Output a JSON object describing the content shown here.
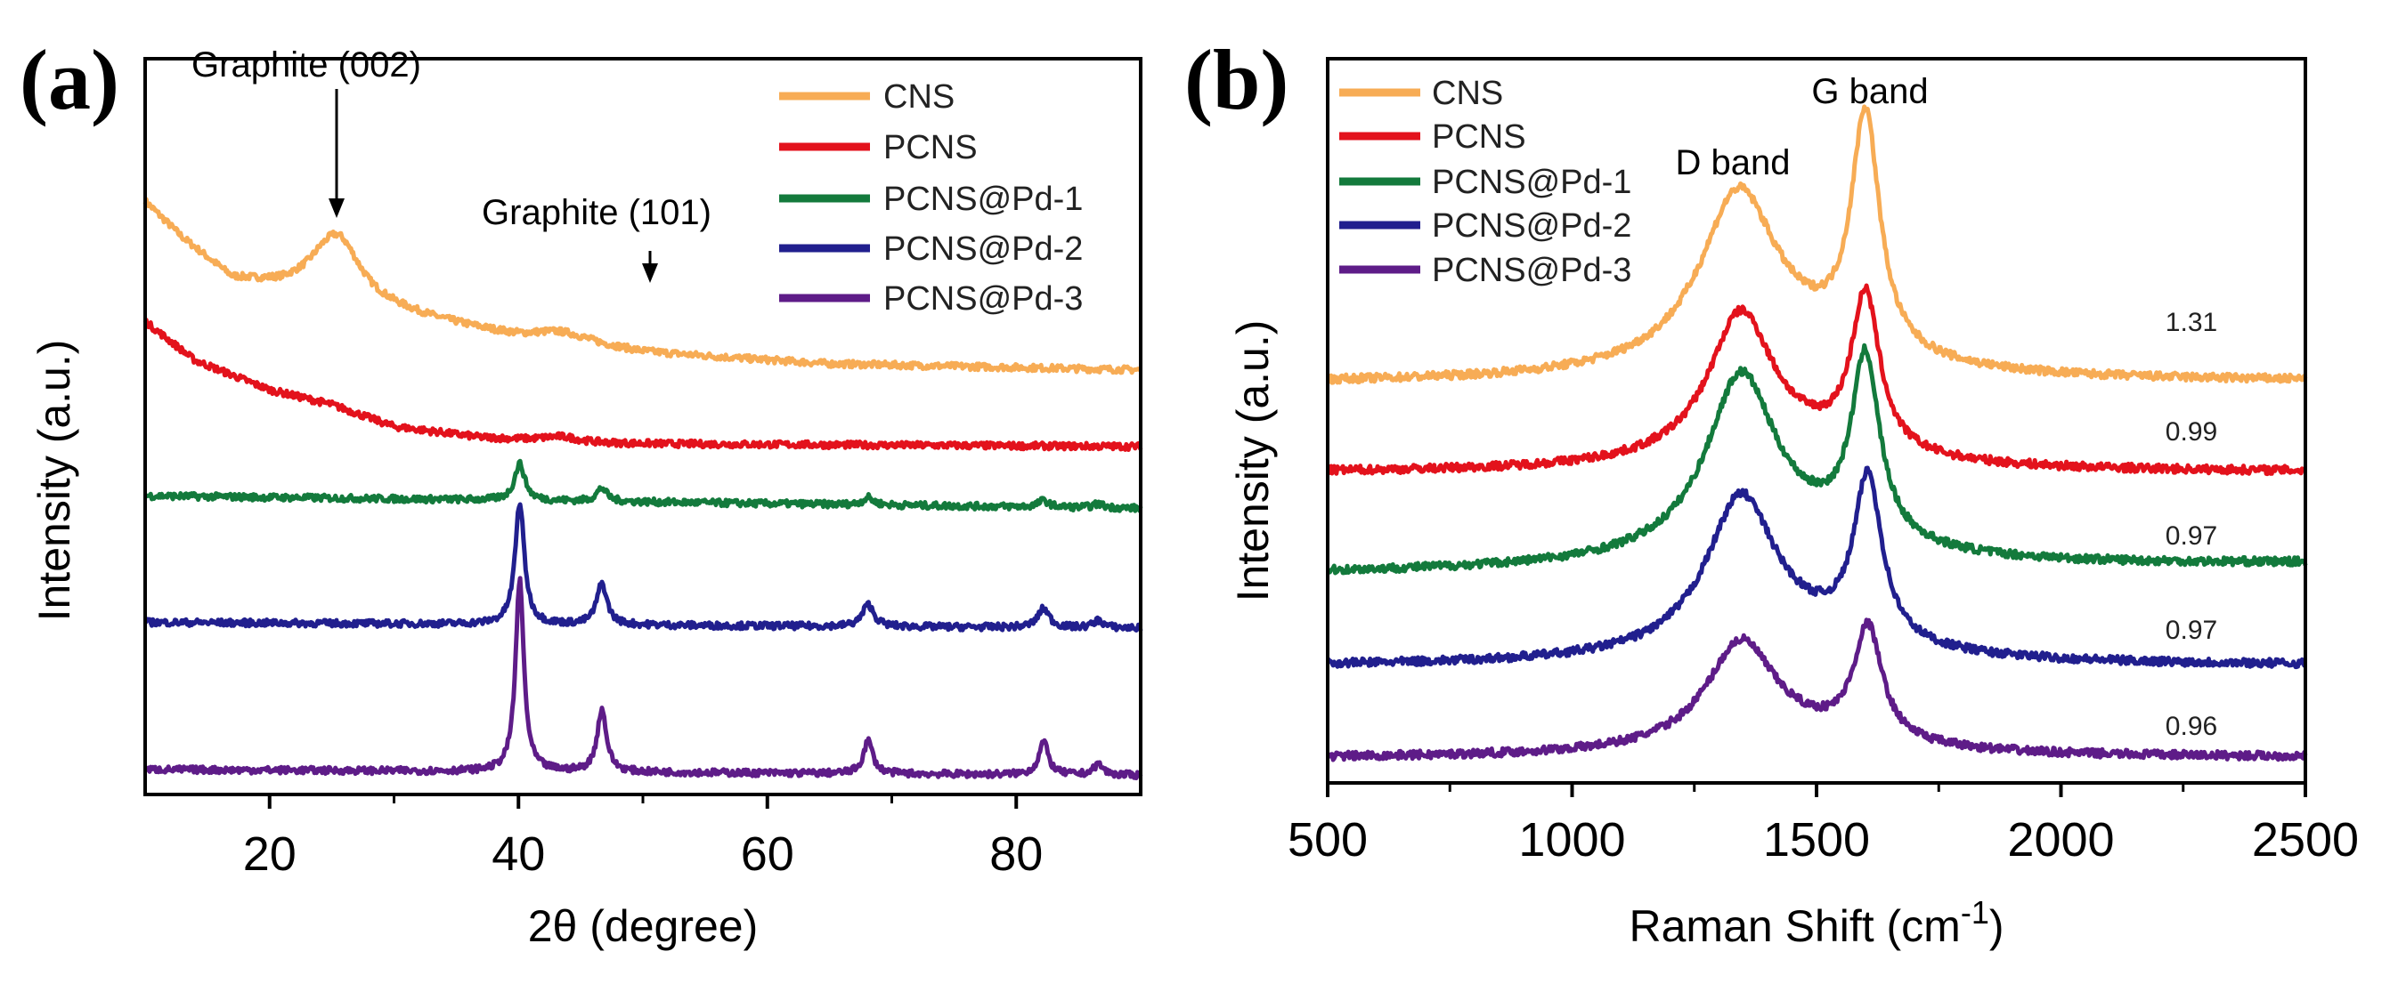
{
  "chart_data": [
    {
      "type": "line",
      "panel_label": "(a)",
      "xlabel": "2θ (degree)",
      "ylabel": "Intensity (a.u.)",
      "xlim": [
        10,
        90
      ],
      "ylim": [
        0,
        100
      ],
      "xticks": [
        20,
        40,
        60,
        80
      ],
      "minor_xticks": [
        30,
        50,
        70
      ],
      "legend_position": "top-right",
      "annotations": [
        {
          "text": "Graphite (002)",
          "x": 25.5
        },
        {
          "text": "Graphite (101)",
          "x": 43.5
        }
      ],
      "series": [
        {
          "name": "CNS",
          "color": "#F7AC55",
          "baseline": [
            [
              10,
              80.5
            ],
            [
              13,
              75.5
            ],
            [
              17,
              70
            ],
            [
              21,
              69
            ],
            [
              24,
              69
            ],
            [
              28,
              66.5
            ],
            [
              33,
              64.5
            ],
            [
              40,
              62
            ],
            [
              50,
              60
            ],
            [
              65,
              58.5
            ],
            [
              90,
              57.7
            ]
          ],
          "peaks": [
            [
              25.5,
              8,
              2.2
            ],
            [
              43.5,
              1.5,
              3
            ]
          ]
        },
        {
          "name": "PCNS",
          "color": "#E3121C",
          "baseline": [
            [
              10,
              64.3
            ],
            [
              14,
              59
            ],
            [
              20,
              55
            ],
            [
              25,
              53
            ],
            [
              30,
              50
            ],
            [
              37,
              48.5
            ],
            [
              45,
              47.7
            ],
            [
              90,
              47.3
            ]
          ],
          "peaks": [
            [
              43.5,
              0.8,
              2
            ]
          ]
        },
        {
          "name": "PCNS@Pd-1",
          "color": "#137A3C",
          "baseline": [
            [
              10,
              40.6
            ],
            [
              90,
              38.9
            ]
          ],
          "peaks": [
            [
              40.1,
              5,
              0.5
            ],
            [
              46.7,
              1.8,
              0.5
            ],
            [
              68.1,
              1,
              0.5
            ],
            [
              82.2,
              0.9,
              0.5
            ],
            [
              86.6,
              0.5,
              0.5
            ]
          ]
        },
        {
          "name": "PCNS@Pd-2",
          "color": "#211F8E",
          "baseline": [
            [
              10,
              23.4
            ],
            [
              90,
              22.6
            ]
          ],
          "peaks": [
            [
              40.1,
              16.5,
              0.45
            ],
            [
              46.7,
              5.6,
              0.5
            ],
            [
              68.1,
              3,
              0.55
            ],
            [
              82.2,
              2.6,
              0.55
            ],
            [
              86.6,
              1,
              0.5
            ]
          ]
        },
        {
          "name": "PCNS@Pd-3",
          "color": "#5E1C88",
          "baseline": [
            [
              10,
              3.4
            ],
            [
              90,
              2.6
            ]
          ],
          "peaks": [
            [
              40.1,
              26,
              0.4
            ],
            [
              46.7,
              8.5,
              0.45
            ],
            [
              68.1,
              4.5,
              0.45
            ],
            [
              82.2,
              4.5,
              0.45
            ],
            [
              86.6,
              1.5,
              0.45
            ]
          ]
        }
      ]
    },
    {
      "type": "line",
      "panel_label": "(b)",
      "xlabel": "Raman Shift (cm",
      "xlabel_sup": "-1",
      "xlabel_end": ")",
      "ylabel": "Intensity (a.u.)",
      "xlim": [
        500,
        2500
      ],
      "ylim": [
        0,
        100
      ],
      "xticks": [
        500,
        1000,
        1500,
        2000,
        2500
      ],
      "minor_xticks": [
        750,
        1250,
        1750,
        2250
      ],
      "legend_position": "top-left",
      "annotations": [
        {
          "text": "D band",
          "x": 1340
        },
        {
          "text": "G band",
          "x": 1600
        }
      ],
      "series": [
        {
          "name": "CNS",
          "color": "#F7AC55",
          "baseline": [
            [
              500,
              55.2
            ],
            [
              2500,
              55.4
            ]
          ],
          "peaks": [
            [
              1340,
              23,
              95
            ],
            [
              1600,
              32.5,
              35
            ],
            [
              1450,
              4,
              250
            ]
          ],
          "id_ig": "1.31"
        },
        {
          "name": "PCNS",
          "color": "#E3121C",
          "baseline": [
            [
              500,
              42.8
            ],
            [
              2500,
              42.9
            ]
          ],
          "peaks": [
            [
              1345,
              19.5,
              80
            ],
            [
              1600,
              21.5,
              35
            ],
            [
              1450,
              3,
              250
            ]
          ],
          "id_ig": "0.99"
        },
        {
          "name": "PCNS@Pd-1",
          "color": "#137A3C",
          "baseline": [
            [
              500,
              28.9
            ],
            [
              2500,
              30.2
            ]
          ],
          "peaks": [
            [
              1345,
              23.5,
              85
            ],
            [
              1600,
              25,
              35
            ],
            [
              1450,
              4,
              250
            ]
          ],
          "id_ig": "0.97"
        },
        {
          "name": "PCNS@Pd-2",
          "color": "#211F8E",
          "baseline": [
            [
              500,
              16.1
            ],
            [
              2500,
              16.2
            ]
          ],
          "peaks": [
            [
              1345,
              20.5,
              85
            ],
            [
              1605,
              22.5,
              35
            ],
            [
              1450,
              3.5,
              250
            ]
          ],
          "id_ig": "0.97"
        },
        {
          "name": "PCNS@Pd-3",
          "color": "#5E1C88",
          "baseline": [
            [
              500,
              3.4
            ],
            [
              2500,
              3.5
            ]
          ],
          "peaks": [
            [
              1345,
              14,
              85
            ],
            [
              1605,
              15.5,
              35
            ],
            [
              1450,
              2.5,
              250
            ]
          ],
          "id_ig": "0.96"
        }
      ]
    }
  ]
}
